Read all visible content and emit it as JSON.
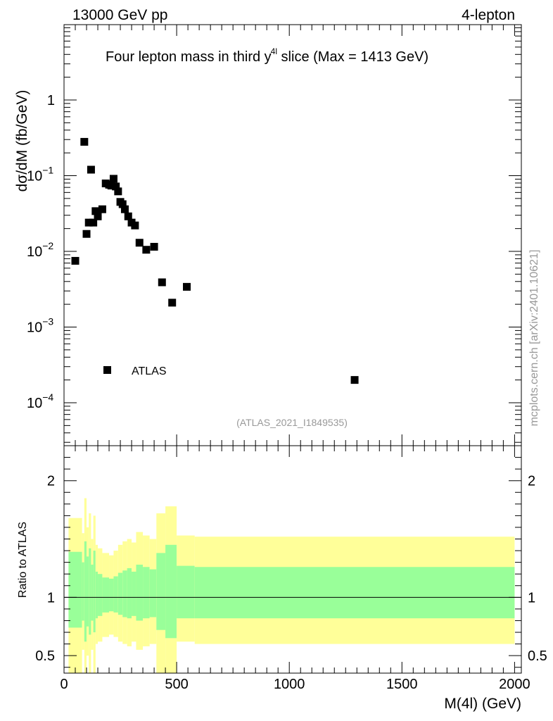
{
  "header": {
    "left": "13000 GeV pp",
    "right": "4-lepton"
  },
  "side_label": "mcplots.cern.ch [arXiv:2401.10621]",
  "chart_data": [
    {
      "type": "scatter",
      "title": "Four lepton mass in third y",
      "title_sup": "4l",
      "title_tail": " slice (Max = 1413 GeV)",
      "ylabel": "dσ/dM (fb/GeV)",
      "yscale": "log",
      "ylim": [
        3e-05,
        10
      ],
      "xlim": [
        0,
        2000
      ],
      "legend": "ATLAS",
      "legend_position": "bottom-left",
      "annotation": "(ATLAS_2021_I1849535)",
      "y_tick_labels": [
        {
          "value": 1,
          "base": "1",
          "exp": ""
        },
        {
          "value": 0.1,
          "base": "10",
          "exp": "−1"
        },
        {
          "value": 0.01,
          "base": "10",
          "exp": "−2"
        },
        {
          "value": 0.001,
          "base": "10",
          "exp": "−3"
        },
        {
          "value": 0.0001,
          "base": "10",
          "exp": "−4"
        }
      ],
      "series": [
        {
          "name": "ATLAS",
          "points": [
            [
              50,
              0.0075
            ],
            [
              90,
              0.28
            ],
            [
              100,
              0.017
            ],
            [
              110,
              0.024
            ],
            [
              120,
              0.12
            ],
            [
              130,
              0.024
            ],
            [
              140,
              0.034
            ],
            [
              150,
              0.029
            ],
            [
              170,
              0.036
            ],
            [
              185,
              0.079
            ],
            [
              200,
              0.076
            ],
            [
              210,
              0.074
            ],
            [
              220,
              0.091
            ],
            [
              230,
              0.072
            ],
            [
              240,
              0.062
            ],
            [
              250,
              0.045
            ],
            [
              260,
              0.042
            ],
            [
              270,
              0.036
            ],
            [
              285,
              0.029
            ],
            [
              300,
              0.024
            ],
            [
              315,
              0.022
            ],
            [
              335,
              0.013
            ],
            [
              365,
              0.0105
            ],
            [
              400,
              0.0115
            ],
            [
              435,
              0.0039
            ],
            [
              480,
              0.0021
            ],
            [
              545,
              0.0034
            ],
            [
              1290,
              0.0002
            ]
          ]
        }
      ]
    },
    {
      "type": "area",
      "ylabel": "Ratio to ATLAS",
      "xlabel": "M(4l) (GeV)",
      "xlim": [
        0,
        2000
      ],
      "ylim": [
        0.35,
        2.3
      ],
      "x_tick_labels": [
        "0",
        "500",
        "1000",
        "1500",
        "2000"
      ],
      "x_tick_values": [
        0,
        500,
        1000,
        1500,
        2000
      ],
      "y_tick_labels": [
        "0.5",
        "1",
        "2"
      ],
      "y_tick_values": [
        0.5,
        1,
        2
      ],
      "reference_line": 1,
      "bands": [
        {
          "x0": 20,
          "x1": 80,
          "y_lo": 0.35,
          "y_hi": 1.68,
          "g_lo": 0.74,
          "g_hi": 1.39
        },
        {
          "x0": 80,
          "x1": 90,
          "y_lo": 0.55,
          "y_hi": 1.55,
          "g_lo": 0.8,
          "g_hi": 1.3
        },
        {
          "x0": 90,
          "x1": 100,
          "y_lo": 0.35,
          "y_hi": 1.85,
          "g_lo": 0.62,
          "g_hi": 1.48
        },
        {
          "x0": 100,
          "x1": 110,
          "y_lo": 0.5,
          "y_hi": 1.6,
          "g_lo": 0.75,
          "g_hi": 1.35
        },
        {
          "x0": 110,
          "x1": 120,
          "y_lo": 0.35,
          "y_hi": 1.72,
          "g_lo": 0.68,
          "g_hi": 1.42
        },
        {
          "x0": 120,
          "x1": 130,
          "y_lo": 0.55,
          "y_hi": 1.5,
          "g_lo": 0.8,
          "g_hi": 1.28
        },
        {
          "x0": 130,
          "x1": 140,
          "y_lo": 0.35,
          "y_hi": 1.7,
          "g_lo": 0.7,
          "g_hi": 1.4
        },
        {
          "x0": 140,
          "x1": 150,
          "y_lo": 0.6,
          "y_hi": 1.45,
          "g_lo": 0.82,
          "g_hi": 1.22
        },
        {
          "x0": 150,
          "x1": 170,
          "y_lo": 0.62,
          "y_hi": 1.42,
          "g_lo": 0.84,
          "g_hi": 1.2
        },
        {
          "x0": 170,
          "x1": 200,
          "y_lo": 0.66,
          "y_hi": 1.38,
          "g_lo": 0.87,
          "g_hi": 1.17
        },
        {
          "x0": 200,
          "x1": 220,
          "y_lo": 0.68,
          "y_hi": 1.36,
          "g_lo": 0.88,
          "g_hi": 1.16
        },
        {
          "x0": 220,
          "x1": 240,
          "y_lo": 0.66,
          "y_hi": 1.4,
          "g_lo": 0.87,
          "g_hi": 1.18
        },
        {
          "x0": 240,
          "x1": 260,
          "y_lo": 0.62,
          "y_hi": 1.45,
          "g_lo": 0.85,
          "g_hi": 1.21
        },
        {
          "x0": 260,
          "x1": 280,
          "y_lo": 0.6,
          "y_hi": 1.48,
          "g_lo": 0.83,
          "g_hi": 1.23
        },
        {
          "x0": 280,
          "x1": 300,
          "y_lo": 0.58,
          "y_hi": 1.5,
          "g_lo": 0.82,
          "g_hi": 1.25
        },
        {
          "x0": 300,
          "x1": 320,
          "y_lo": 0.62,
          "y_hi": 1.47,
          "g_lo": 0.84,
          "g_hi": 1.22
        },
        {
          "x0": 320,
          "x1": 350,
          "y_lo": 0.55,
          "y_hi": 1.56,
          "g_lo": 0.8,
          "g_hi": 1.28
        },
        {
          "x0": 350,
          "x1": 380,
          "y_lo": 0.58,
          "y_hi": 1.53,
          "g_lo": 0.82,
          "g_hi": 1.26
        },
        {
          "x0": 380,
          "x1": 410,
          "y_lo": 0.6,
          "y_hi": 1.5,
          "g_lo": 0.83,
          "g_hi": 1.24
        },
        {
          "x0": 410,
          "x1": 450,
          "y_lo": 0.35,
          "y_hi": 1.72,
          "g_lo": 0.72,
          "g_hi": 1.38
        },
        {
          "x0": 450,
          "x1": 500,
          "y_lo": 0.35,
          "y_hi": 1.78,
          "g_lo": 0.65,
          "g_hi": 1.45
        },
        {
          "x0": 500,
          "x1": 580,
          "y_lo": 0.62,
          "y_hi": 1.53,
          "g_lo": 0.82,
          "g_hi": 1.27
        },
        {
          "x0": 580,
          "x1": 2000,
          "y_lo": 0.6,
          "y_hi": 1.52,
          "g_lo": 0.82,
          "g_hi": 1.26
        }
      ],
      "colors": {
        "yellow": "#ffff99",
        "green": "#99ff99",
        "line": "#000000"
      }
    }
  ]
}
